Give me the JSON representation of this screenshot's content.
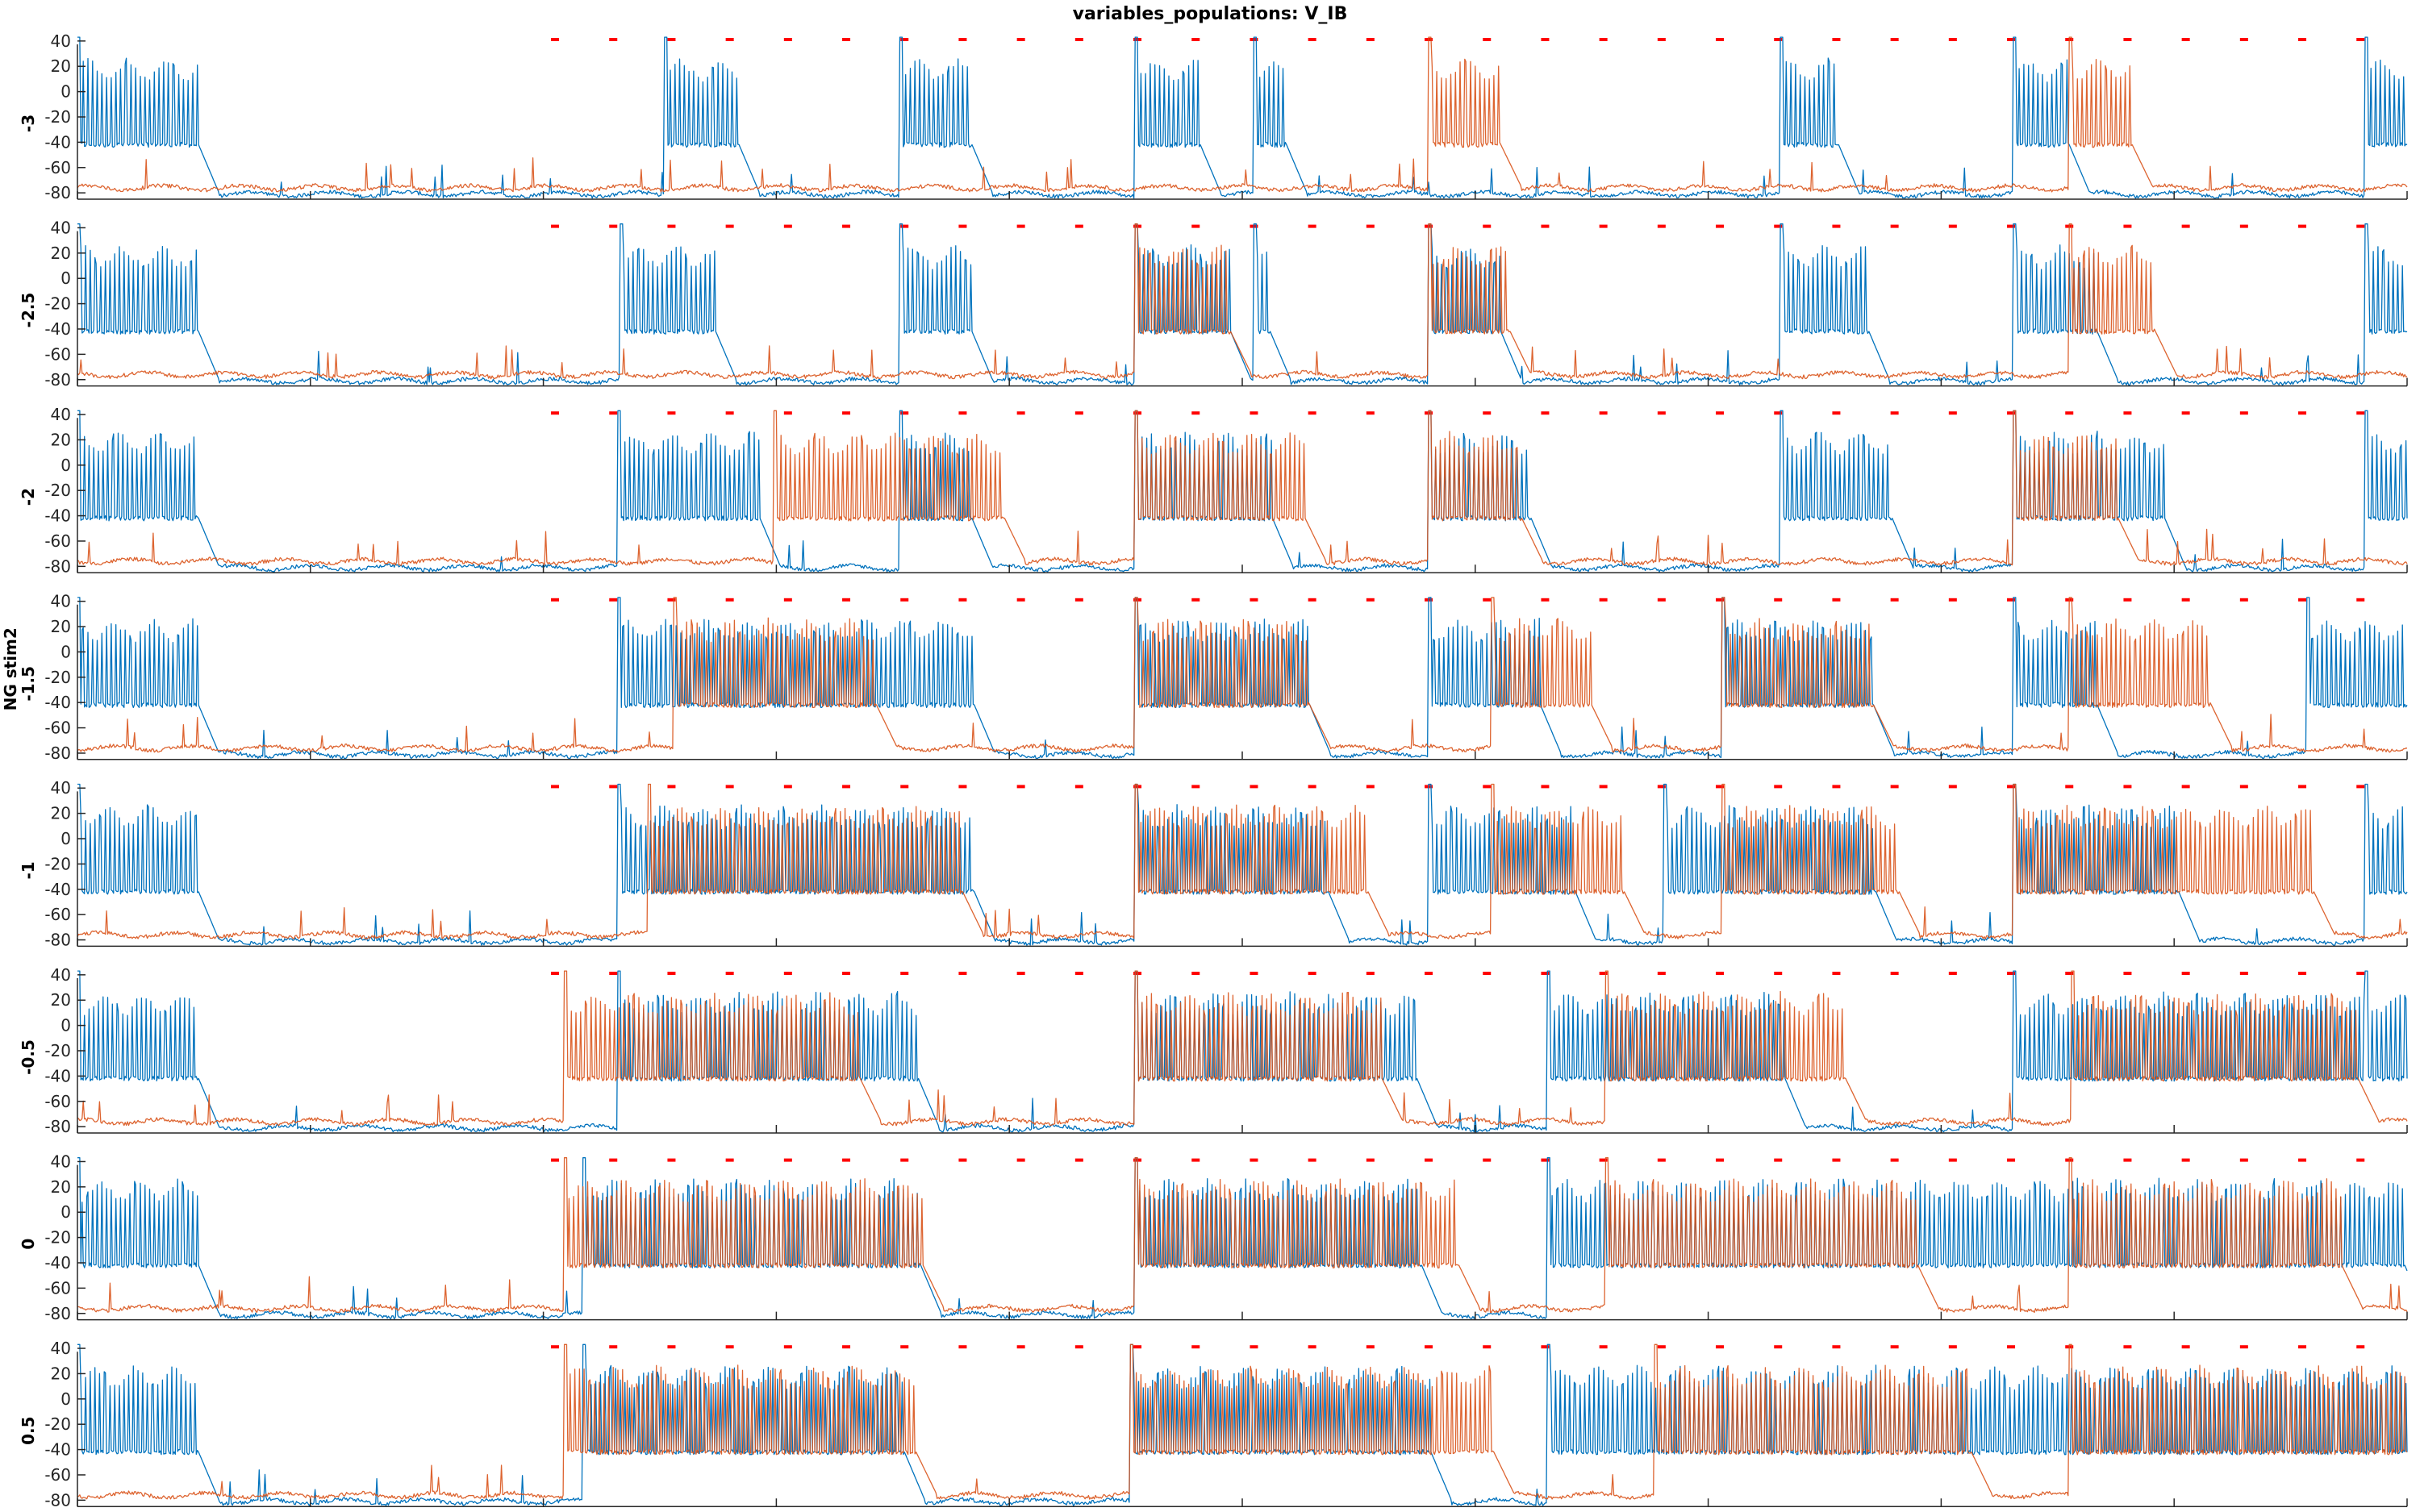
{
  "chart_data": {
    "type": "line",
    "title": "variables_populations: V_IB",
    "ylabel": "NG stim2",
    "xlim": [
      0,
      1000
    ],
    "xticks": [
      0,
      100,
      200,
      300,
      400,
      500,
      600,
      700,
      800,
      900,
      1000
    ],
    "ylim": [
      -85,
      45
    ],
    "yticks": [
      -80,
      -60,
      -40,
      -20,
      0,
      20,
      40
    ],
    "colors": {
      "cell1": "#0072BD",
      "cell2": "#D95319",
      "stim": "#FF0000",
      "axis": "#262626"
    },
    "stim_marks": [
      205,
      230,
      255,
      280,
      305,
      330,
      355,
      380,
      405,
      430,
      455,
      480,
      505,
      530,
      555,
      580,
      605,
      630,
      655,
      680,
      705,
      730,
      755,
      780,
      805,
      830,
      855,
      880,
      905,
      930,
      955,
      980
    ],
    "panels": [
      {
        "label": "-3",
        "cell1_bursts": [
          [
            0,
            52
          ],
          [
            252,
            284
          ],
          [
            353,
            384
          ],
          [
            454,
            482
          ],
          [
            505,
            519
          ],
          [
            731,
            756
          ],
          [
            831,
            855
          ],
          [
            982,
            1000
          ]
        ],
        "cell2_bursts": [
          [
            580,
            611
          ],
          [
            855,
            882
          ]
        ]
      },
      {
        "label": "-2.5",
        "cell1_bursts": [
          [
            0,
            52
          ],
          [
            233,
            274
          ],
          [
            353,
            384
          ],
          [
            454,
            495
          ],
          [
            505,
            512
          ],
          [
            580,
            611
          ],
          [
            731,
            769
          ],
          [
            831,
            867
          ],
          [
            982,
            1000
          ]
        ],
        "cell2_bursts": [
          [
            454,
            495
          ],
          [
            580,
            615
          ],
          [
            855,
            892
          ]
        ]
      },
      {
        "label": "-2",
        "cell1_bursts": [
          [
            0,
            52
          ],
          [
            232,
            293
          ],
          [
            353,
            384
          ],
          [
            454,
            513
          ],
          [
            580,
            624
          ],
          [
            731,
            779
          ],
          [
            831,
            896
          ],
          [
            982,
            1000
          ]
        ],
        "cell2_bursts": [
          [
            299,
            398
          ],
          [
            454,
            527
          ],
          [
            580,
            620
          ],
          [
            831,
            876
          ]
        ]
      },
      {
        "label": "-1.5",
        "cell1_bursts": [
          [
            0,
            52
          ],
          [
            232,
            385
          ],
          [
            454,
            529
          ],
          [
            580,
            628
          ],
          [
            706,
            771
          ],
          [
            831,
            867
          ],
          [
            957,
            1000
          ]
        ],
        "cell2_bursts": [
          [
            256,
            343
          ],
          [
            454,
            529
          ],
          [
            607,
            650
          ],
          [
            706,
            771
          ],
          [
            855,
            916
          ]
        ]
      },
      {
        "label": "-1",
        "cell1_bursts": [
          [
            0,
            52
          ],
          [
            232,
            385
          ],
          [
            454,
            537
          ],
          [
            580,
            643
          ],
          [
            681,
            772
          ],
          [
            831,
            902
          ],
          [
            982,
            1000
          ]
        ],
        "cell2_bursts": [
          [
            245,
            380
          ],
          [
            454,
            554
          ],
          [
            607,
            664
          ],
          [
            706,
            782
          ],
          [
            831,
            960
          ]
        ]
      },
      {
        "label": "-0.5",
        "cell1_bursts": [
          [
            0,
            52
          ],
          [
            232,
            361
          ],
          [
            454,
            575
          ],
          [
            631,
            733
          ],
          [
            831,
            982
          ],
          [
            982,
            1000
          ]
        ],
        "cell2_bursts": [
          [
            209,
            336
          ],
          [
            454,
            560
          ],
          [
            656,
            759
          ],
          [
            856,
            979
          ]
        ]
      },
      {
        "label": "0",
        "cell1_bursts": [
          [
            0,
            52
          ],
          [
            217,
            362
          ],
          [
            454,
            577
          ],
          [
            631,
            999
          ]
        ],
        "cell2_bursts": [
          [
            209,
            363
          ],
          [
            454,
            593
          ],
          [
            656,
            790
          ],
          [
            855,
            972
          ]
        ]
      },
      {
        "label": "0.5",
        "cell1_bursts": [
          [
            0,
            52
          ],
          [
            217,
            355
          ],
          [
            452,
            581
          ],
          [
            631,
            1000
          ]
        ],
        "cell2_bursts": [
          [
            209,
            360
          ],
          [
            452,
            608
          ],
          [
            677,
            813
          ],
          [
            855,
            1000
          ]
        ]
      }
    ]
  }
}
